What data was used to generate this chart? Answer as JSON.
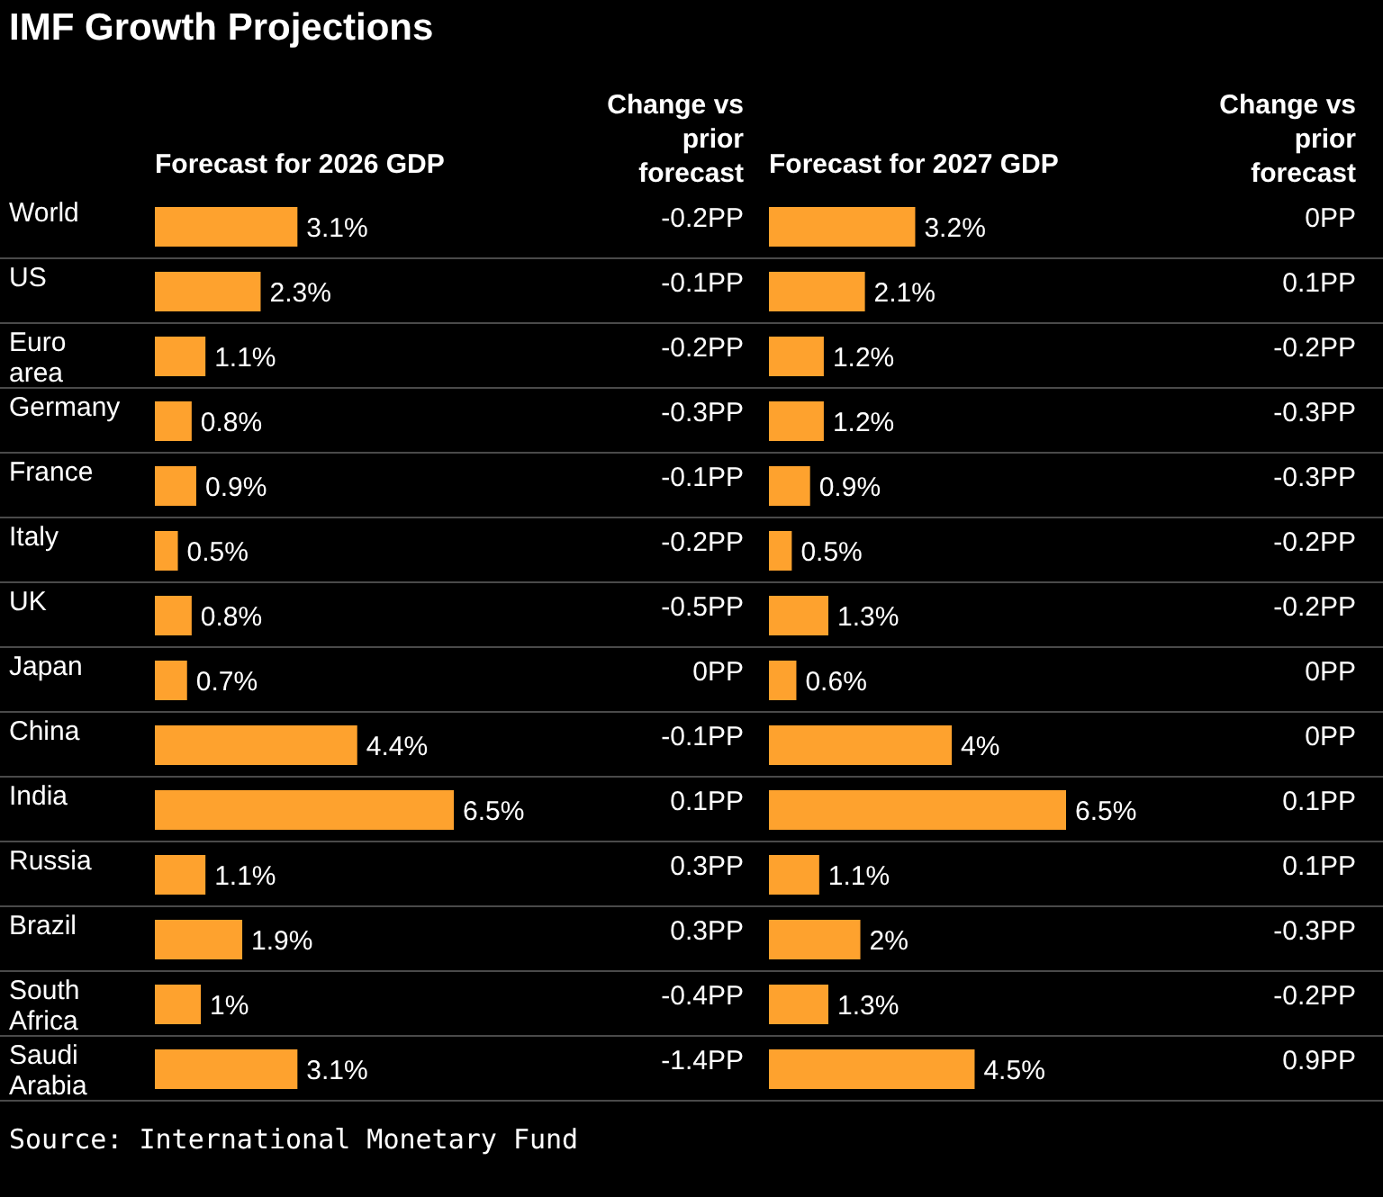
{
  "chart_data": [
    {
      "type": "bar",
      "orientation": "horizontal",
      "title": "IMF Growth Projections",
      "xlabel": "Forecast for 2026 GDP",
      "categories": [
        "World",
        "US",
        "Euro area",
        "Germany",
        "France",
        "Italy",
        "UK",
        "Japan",
        "China",
        "India",
        "Russia",
        "Brazil",
        "South Africa",
        "Saudi Arabia"
      ],
      "values": [
        3.1,
        2.3,
        1.1,
        0.8,
        0.9,
        0.5,
        0.8,
        0.7,
        4.4,
        6.5,
        1.1,
        1.9,
        1,
        3.1
      ],
      "value_labels": [
        "3.1%",
        "2.3%",
        "1.1%",
        "0.8%",
        "0.9%",
        "0.5%",
        "0.8%",
        "0.7%",
        "4.4%",
        "6.5%",
        "1.1%",
        "1.9%",
        "1%",
        "3.1%"
      ],
      "color": "#fea22e",
      "annotations": [
        "Source: International Monetary Fund"
      ]
    },
    {
      "type": "other",
      "title": "Change vs prior forecast",
      "annotations": [
        "-0.2PP",
        "-0.1PP",
        "-0.2PP",
        "-0.3PP",
        "-0.1PP",
        "-0.2PP",
        "-0.5PP",
        "0PP",
        "-0.1PP",
        "0.1PP",
        "0.3PP",
        "0.3PP",
        "-0.4PP",
        "-1.4PP"
      ]
    },
    {
      "type": "bar",
      "orientation": "horizontal",
      "xlabel": "Forecast for 2027 GDP",
      "values": [
        3.2,
        2.1,
        1.2,
        1.2,
        0.9,
        0.5,
        1.3,
        0.6,
        4,
        6.5,
        1.1,
        2,
        1.3,
        4.5
      ],
      "value_labels": [
        "3.2%",
        "2.1%",
        "1.2%",
        "1.2%",
        "0.9%",
        "0.5%",
        "1.3%",
        "0.6%",
        "4%",
        "6.5%",
        "1.1%",
        "2%",
        "1.3%",
        "4.5%"
      ],
      "color": "#fea22e",
      "tick_labels": false
    },
    {
      "type": "other",
      "title": "Change vs prior forecast",
      "annotations": [
        "0PP",
        "0.1PP",
        "-0.2PP",
        "-0.3PP",
        "-0.3PP",
        "-0.2PP",
        "-0.2PP",
        "0PP",
        "0PP",
        "0.1PP",
        "0.1PP",
        "-0.3PP",
        "-0.2PP",
        "0.9PP"
      ]
    }
  ]
}
